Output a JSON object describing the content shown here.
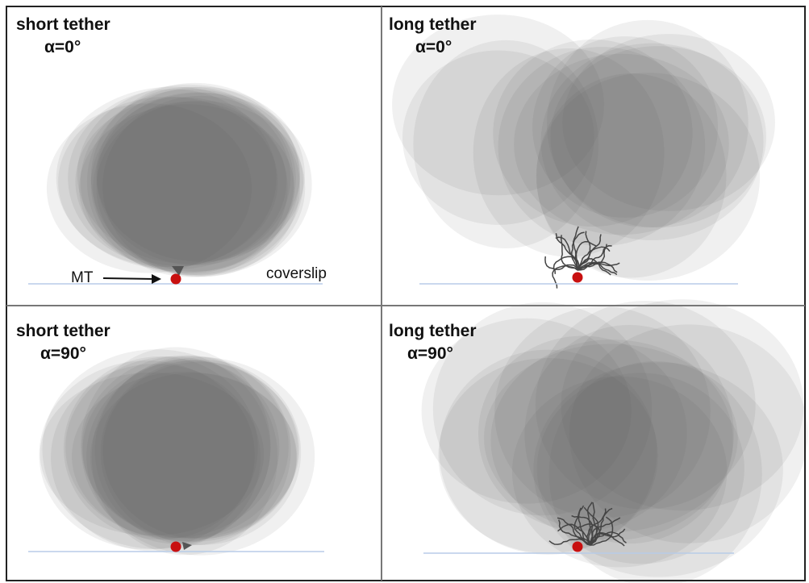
{
  "panels": [
    {
      "title": "short tether",
      "angle": "α=0°"
    },
    {
      "title": "long tether",
      "angle": "α=0°"
    },
    {
      "title": "short tether",
      "angle": "α=90°"
    },
    {
      "title": "long tether",
      "angle": "α=90°"
    }
  ],
  "annotations": {
    "mt": "MT",
    "coverslip": "coverslip"
  }
}
